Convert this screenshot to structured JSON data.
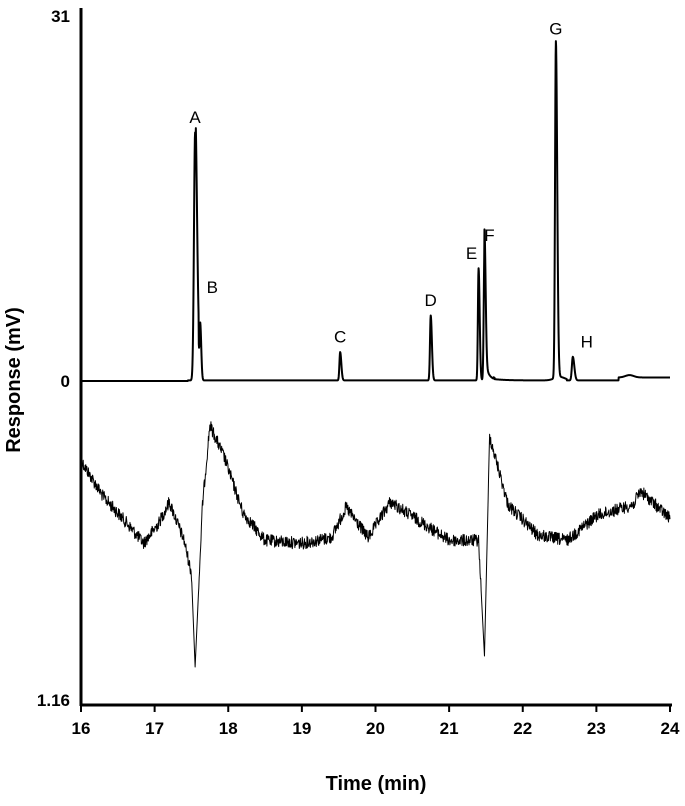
{
  "chart_data": {
    "type": "line",
    "title": "",
    "xlabel": "Time (min)",
    "ylabel": "Response (mV)",
    "xlim": [
      16,
      24
    ],
    "x_ticks": [
      16,
      17,
      18,
      19,
      20,
      21,
      22,
      23,
      24
    ],
    "y_tick_labels": {
      "top": "31",
      "middle": "0",
      "bottom": "1.16"
    },
    "grid": false,
    "legend": "none",
    "series": [
      {
        "role": "upper-trace",
        "baseline_mv": 0,
        "max_mv": 31,
        "peaks": [
          {
            "label": "A",
            "x": 17.55,
            "y": 21.0
          },
          {
            "label": "B",
            "x": 17.62,
            "y": 4.5
          },
          {
            "label": "C",
            "x": 19.52,
            "y": 2.4
          },
          {
            "label": "D",
            "x": 20.75,
            "y": 5.5
          },
          {
            "label": "E",
            "x": 21.4,
            "y": 9.5
          },
          {
            "label": "F",
            "x": 21.48,
            "y": 11.0
          },
          {
            "label": "G",
            "x": 22.45,
            "y": 28.5
          },
          {
            "label": "H",
            "x": 22.68,
            "y": 2.0
          }
        ]
      },
      {
        "role": "lower-trace",
        "points": [
          [
            16.0,
            0.29
          ],
          [
            16.3,
            0.42
          ],
          [
            16.6,
            0.51
          ],
          [
            16.85,
            0.59
          ],
          [
            17.05,
            0.52
          ],
          [
            17.2,
            0.44
          ],
          [
            17.4,
            0.58
          ],
          [
            17.5,
            0.7
          ],
          [
            17.55,
            1.04
          ],
          [
            17.65,
            0.45
          ],
          [
            17.75,
            0.16
          ],
          [
            17.95,
            0.28
          ],
          [
            18.2,
            0.48
          ],
          [
            18.5,
            0.58
          ],
          [
            19.0,
            0.59
          ],
          [
            19.4,
            0.57
          ],
          [
            19.6,
            0.46
          ],
          [
            19.9,
            0.57
          ],
          [
            20.2,
            0.44
          ],
          [
            20.6,
            0.51
          ],
          [
            21.0,
            0.58
          ],
          [
            21.4,
            0.58
          ],
          [
            21.48,
            1.0
          ],
          [
            21.55,
            0.2
          ],
          [
            21.8,
            0.45
          ],
          [
            22.2,
            0.56
          ],
          [
            22.6,
            0.58
          ],
          [
            23.0,
            0.49
          ],
          [
            23.5,
            0.45
          ],
          [
            23.6,
            0.4
          ],
          [
            24.0,
            0.5
          ]
        ]
      }
    ]
  }
}
